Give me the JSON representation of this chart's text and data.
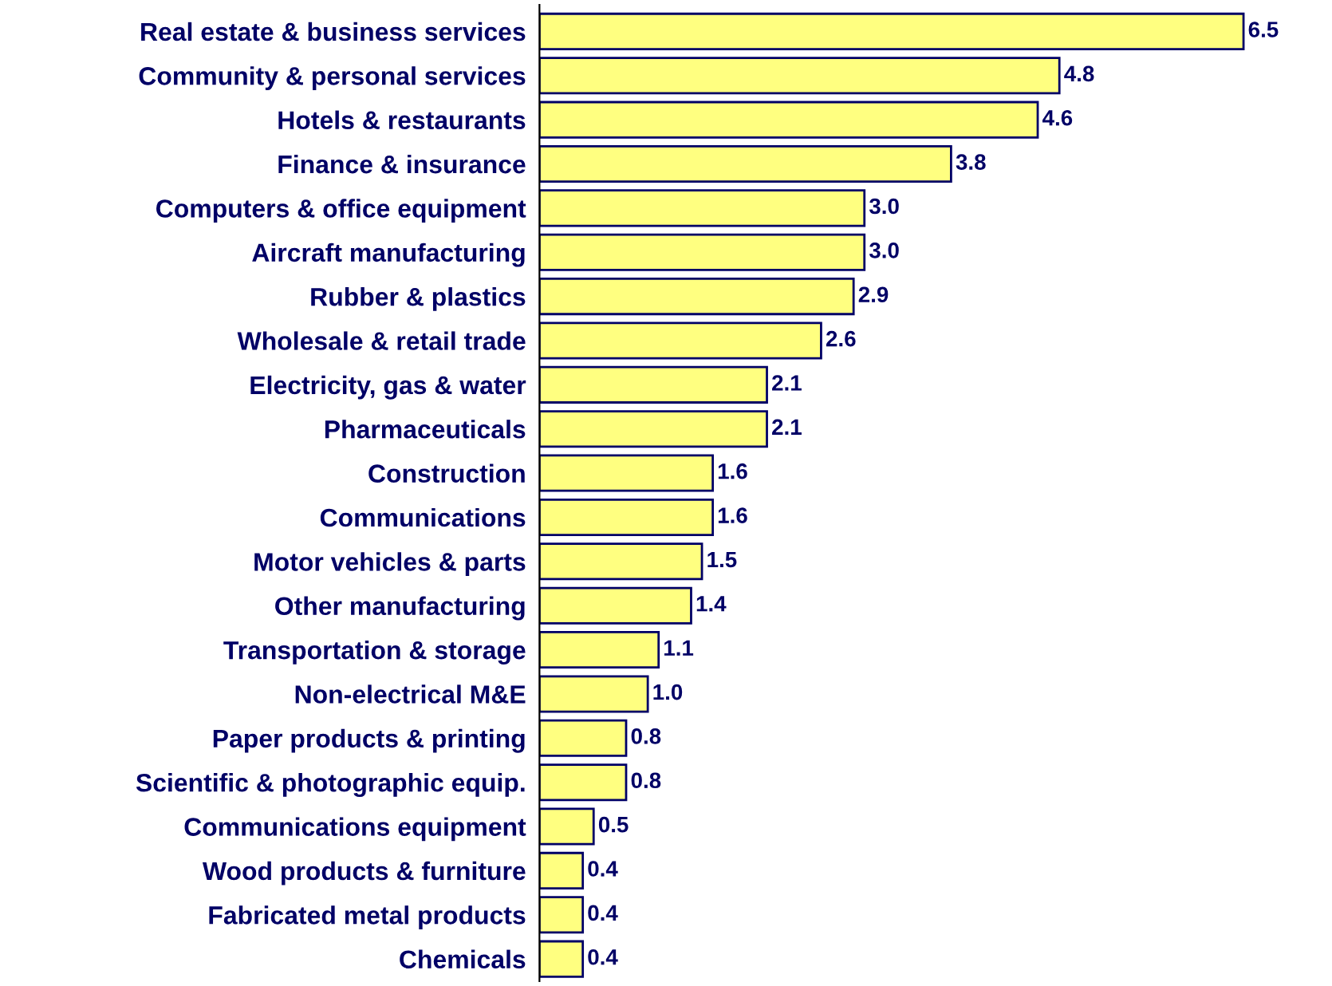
{
  "chart_data": {
    "type": "bar",
    "orientation": "horizontal",
    "data_labels": true,
    "color": "#ffff80",
    "categories": [
      "Real estate & business services",
      "Community & personal services",
      "Hotels & restaurants",
      "Finance & insurance",
      "Computers & office equipment",
      "Aircraft manufacturing",
      "Rubber & plastics",
      "Wholesale & retail trade",
      "Electricity, gas & water",
      "Pharmaceuticals",
      "Construction",
      "Communications",
      "Motor vehicles & parts",
      "Other manufacturing",
      "Transportation & storage",
      "Non-electrical M&E",
      "Paper products & printing",
      "Scientific & photographic equip.",
      "Communications equipment",
      "Wood products & furniture",
      "Fabricated metal products",
      "Chemicals"
    ],
    "values": [
      6.5,
      4.8,
      4.6,
      3.8,
      3.0,
      3.0,
      2.9,
      2.6,
      2.1,
      2.1,
      1.6,
      1.6,
      1.5,
      1.4,
      1.1,
      1.0,
      0.8,
      0.8,
      0.5,
      0.4,
      0.4,
      0.4
    ],
    "value_labels": [
      "6.5",
      "4.8",
      "4.6",
      "3.8",
      "3.0",
      "3.0",
      "2.9",
      "2.6",
      "2.1",
      "2.1",
      "1.6",
      "1.6",
      "1.5",
      "1.4",
      "1.1",
      "1.0",
      "0.8",
      "0.8",
      "0.5",
      "0.4",
      "0.4",
      "0.4"
    ]
  }
}
